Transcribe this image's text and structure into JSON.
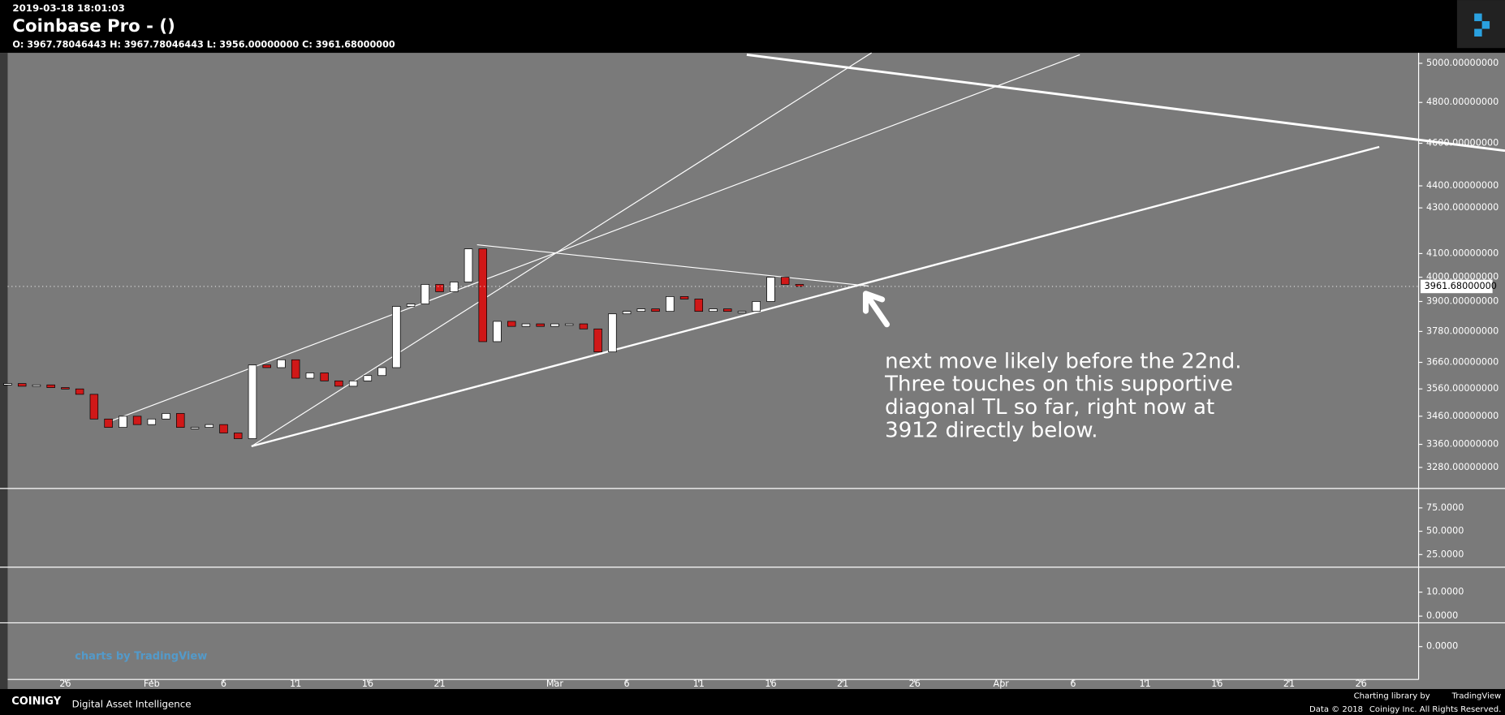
{
  "header": {
    "timestamp": "2019-03-18 18:01:03",
    "title": "Coinbase Pro -  ()",
    "ohlc": "O: 3967.78046443 H: 3967.78046443 L: 3956.00000000 C: 3961.68000000"
  },
  "chart_data": [
    {
      "type": "candlestick",
      "log_scale": true,
      "grid": false,
      "x": [
        "2019-01-22",
        "2019-01-23",
        "2019-01-24",
        "2019-01-25",
        "2019-01-26",
        "2019-01-27",
        "2019-01-28",
        "2019-01-29",
        "2019-01-30",
        "2019-01-31",
        "2019-02-01",
        "2019-02-02",
        "2019-02-03",
        "2019-02-04",
        "2019-02-05",
        "2019-02-06",
        "2019-02-07",
        "2019-02-08",
        "2019-02-09",
        "2019-02-10",
        "2019-02-11",
        "2019-02-12",
        "2019-02-13",
        "2019-02-14",
        "2019-02-15",
        "2019-02-16",
        "2019-02-17",
        "2019-02-18",
        "2019-02-19",
        "2019-02-20",
        "2019-02-21",
        "2019-02-22",
        "2019-02-23",
        "2019-02-24",
        "2019-02-25",
        "2019-02-26",
        "2019-02-27",
        "2019-02-28",
        "2019-03-01",
        "2019-03-02",
        "2019-03-03",
        "2019-03-04",
        "2019-03-05",
        "2019-03-06",
        "2019-03-07",
        "2019-03-08",
        "2019-03-09",
        "2019-03-10",
        "2019-03-11",
        "2019-03-12",
        "2019-03-13",
        "2019-03-14",
        "2019-03-15",
        "2019-03-16",
        "2019-03-17",
        "2019-03-18"
      ],
      "close": [
        3580,
        3570,
        3575,
        3565,
        3560,
        3540,
        3450,
        3420,
        3460,
        3430,
        3450,
        3470,
        3420,
        3420,
        3430,
        3400,
        3380,
        3650,
        3640,
        3670,
        3600,
        3620,
        3590,
        3570,
        3590,
        3610,
        3640,
        3880,
        3890,
        3970,
        3940,
        3980,
        4120,
        3740,
        3820,
        3800,
        3810,
        3800,
        3810,
        3810,
        3790,
        3700,
        3850,
        3860,
        3870,
        3860,
        3920,
        3910,
        3860,
        3870,
        3860,
        3860,
        3900,
        4000,
        3970,
        3961.68
      ],
      "up_color": "#ffffff",
      "down_color": "#d01818",
      "xlim": [
        "2019-01-22",
        "2019-04-30"
      ],
      "xticks": [
        {
          "value": "2019-01-26",
          "label": "26"
        },
        {
          "value": "2019-02-01",
          "label": "Feb"
        },
        {
          "value": "2019-02-06",
          "label": "6"
        },
        {
          "value": "2019-02-11",
          "label": "11"
        },
        {
          "value": "2019-02-16",
          "label": "16"
        },
        {
          "value": "2019-02-21",
          "label": "21"
        },
        {
          "value": "2019-03-01",
          "label": "Mar"
        },
        {
          "value": "2019-03-06",
          "label": "6"
        },
        {
          "value": "2019-03-11",
          "label": "11"
        },
        {
          "value": "2019-03-16",
          "label": "16"
        },
        {
          "value": "2019-03-21",
          "label": "21"
        },
        {
          "value": "2019-03-26",
          "label": "26"
        },
        {
          "value": "2019-04-01",
          "label": "Apr"
        },
        {
          "value": "2019-04-06",
          "label": "6"
        },
        {
          "value": "2019-04-11",
          "label": "11"
        },
        {
          "value": "2019-04-16",
          "label": "16"
        },
        {
          "value": "2019-04-21",
          "label": "21"
        },
        {
          "value": "2019-04-26",
          "label": "26"
        }
      ],
      "ylim": [
        3212,
        5055
      ],
      "yticks": [
        {
          "value": 5000,
          "label": "5000.00000000"
        },
        {
          "value": 4800,
          "label": "4800.00000000"
        },
        {
          "value": 4600,
          "label": "4600.00000000"
        },
        {
          "value": 4400,
          "label": "4400.00000000"
        },
        {
          "value": 4300,
          "label": "4300.00000000"
        },
        {
          "value": 4100,
          "label": "4100.00000000"
        },
        {
          "value": 4000,
          "label": "4000.00000000"
        },
        {
          "value": 3900,
          "label": "3900.00000000"
        },
        {
          "value": 3780,
          "label": "3780.00000000"
        },
        {
          "value": 3660,
          "label": "3660.00000000"
        },
        {
          "value": 3560,
          "label": "3560.00000000"
        },
        {
          "value": 3460,
          "label": "3460.00000000"
        },
        {
          "value": 3360,
          "label": "3360.00000000"
        },
        {
          "value": 3280,
          "label": "3280.00000000"
        }
      ],
      "last_price": {
        "value": 3961.68,
        "label": "3961.68000000"
      },
      "annotation": [
        "next move likely before the 22nd.",
        "Three touches on this supportive",
        "diagonal TL so far, right now at",
        "3912 directly below."
      ],
      "watermark": "charts by TradingView"
    },
    {
      "type": "indicator",
      "ylim": [
        12.5,
        94.8
      ],
      "yticks": [
        {
          "value": 75,
          "label": "75.0000"
        },
        {
          "value": 50,
          "label": "50.0000"
        },
        {
          "value": 25,
          "label": "25.0000"
        }
      ]
    },
    {
      "type": "indicator",
      "ylim": [
        -2.4,
        20
      ],
      "yticks": [
        {
          "value": 10,
          "label": "10.0000"
        },
        {
          "value": 0,
          "label": "0.0000"
        }
      ]
    },
    {
      "type": "indicator",
      "ylim": [
        -1.4,
        1
      ],
      "yticks": [
        {
          "value": 0,
          "label": "0.0000"
        }
      ]
    }
  ],
  "footer": {
    "brand": "COINIGY",
    "tagline": "Digital Asset Intelligence",
    "library": "Charting library by",
    "library_name": "TradingView",
    "data": "Data © 2018",
    "rights": "Coinigy Inc. All Rights Reserved."
  }
}
